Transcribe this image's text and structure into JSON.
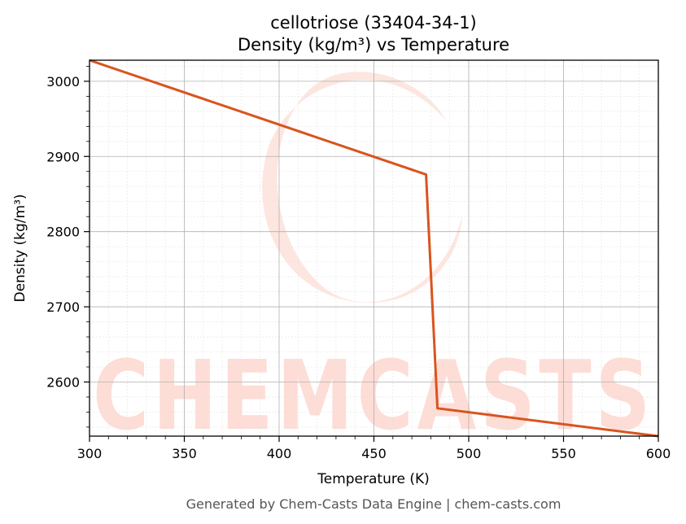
{
  "chart_data": {
    "type": "line",
    "title": "cellotriose (33404-34-1)",
    "subtitle": "Density (kg/m³) vs Temperature",
    "xlabel": "Temperature (K)",
    "ylabel": "Density (kg/m³)",
    "xlim": [
      300,
      600
    ],
    "ylim": [
      2528,
      3028
    ],
    "x_ticks": [
      300,
      350,
      400,
      450,
      500,
      550,
      600
    ],
    "y_ticks": [
      2600,
      2700,
      2800,
      2900,
      3000
    ],
    "grid": true,
    "series": [
      {
        "x": [
          300,
          477.5,
          483.5,
          600
        ],
        "y": [
          3028,
          2876,
          2565,
          2528
        ]
      }
    ],
    "line_color": "#d9541e"
  },
  "watermark": {
    "text": "CHEMCASTS",
    "color": "#fdddd6"
  },
  "footer": "Generated by Chem-Casts Data Engine | chem-casts.com"
}
